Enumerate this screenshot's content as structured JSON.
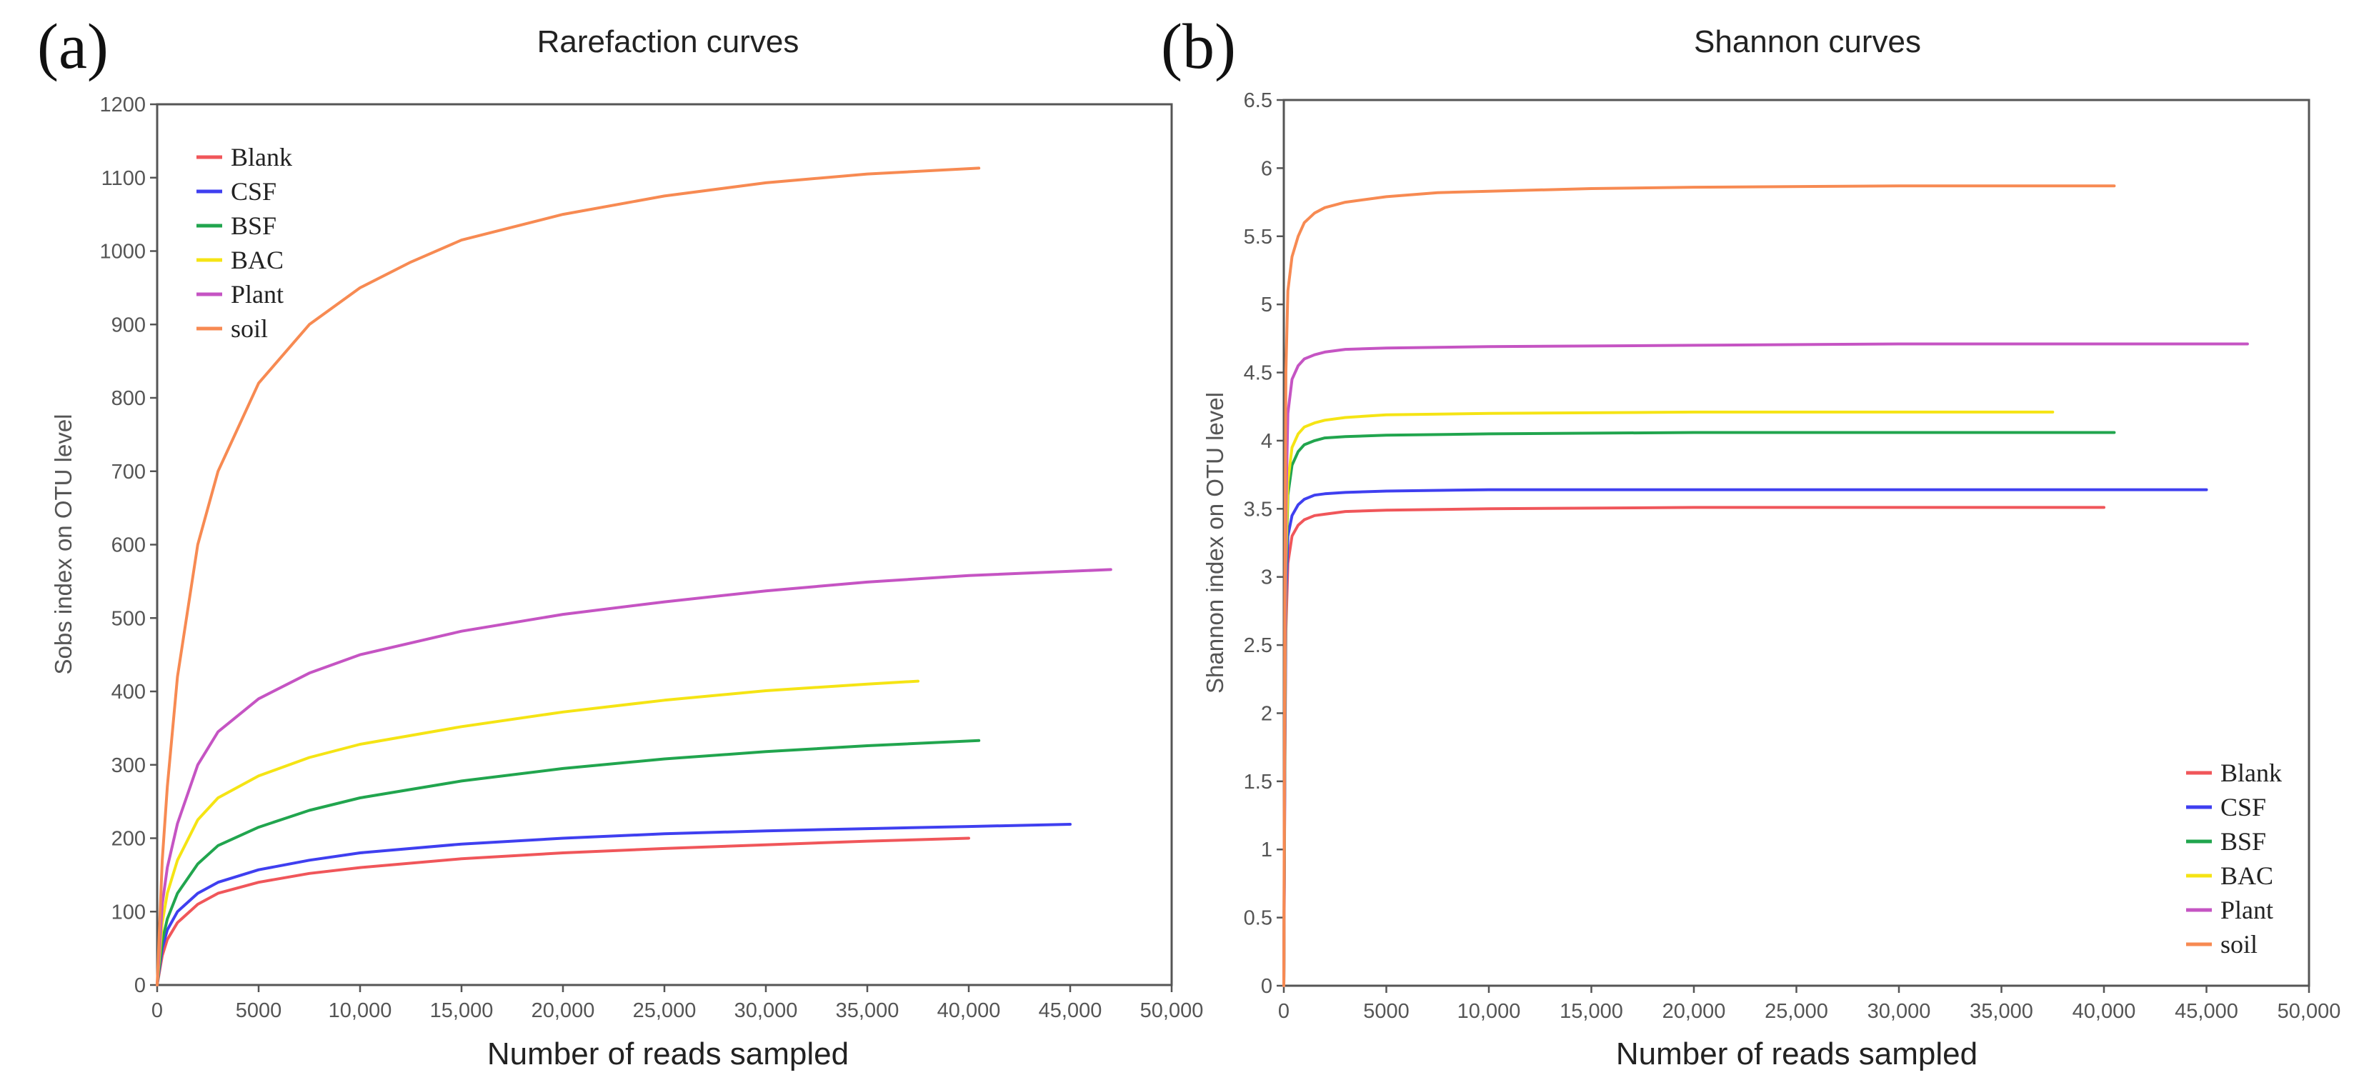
{
  "figure": {
    "panel_a_label": "(a)",
    "panel_b_label": "(b)"
  },
  "chart_data": [
    {
      "type": "line",
      "title": "Rarefaction curves",
      "xlabel": "Number of reads sampled",
      "ylabel": "Sobs index on OTU level",
      "xlim": [
        0,
        50000
      ],
      "ylim": [
        0,
        1200
      ],
      "x_ticks": [
        0,
        5000,
        10000,
        15000,
        20000,
        25000,
        30000,
        35000,
        40000,
        45000,
        50000
      ],
      "x_tick_labels": [
        "0",
        "5000",
        "10,000",
        "15,000",
        "20,000",
        "25,000",
        "30,000",
        "35,000",
        "40,000",
        "45,000",
        "50,000"
      ],
      "y_ticks": [
        0,
        100,
        200,
        300,
        400,
        500,
        600,
        700,
        800,
        900,
        1000,
        1100,
        1200
      ],
      "y_tick_labels": [
        "0",
        "100",
        "200",
        "300",
        "400",
        "500",
        "600",
        "700",
        "800",
        "900",
        "1000",
        "1100",
        "1200"
      ],
      "grid": false,
      "legend_position": "top-left",
      "series": [
        {
          "name": "Blank",
          "color": "#f0565a",
          "x": [
            0,
            250,
            500,
            1000,
            2000,
            3000,
            5000,
            7500,
            10000,
            15000,
            20000,
            25000,
            30000,
            35000,
            40000
          ],
          "y": [
            0,
            40,
            62,
            85,
            110,
            125,
            140,
            152,
            160,
            172,
            180,
            186,
            191,
            196,
            200
          ]
        },
        {
          "name": "CSF",
          "color": "#3f3ff0",
          "x": [
            0,
            250,
            500,
            1000,
            2000,
            3000,
            5000,
            7500,
            10000,
            15000,
            20000,
            25000,
            30000,
            35000,
            40000,
            45000
          ],
          "y": [
            0,
            50,
            75,
            100,
            125,
            140,
            157,
            170,
            180,
            192,
            200,
            206,
            210,
            213,
            216,
            219
          ]
        },
        {
          "name": "BSF",
          "color": "#21a54e",
          "x": [
            0,
            250,
            500,
            1000,
            2000,
            3000,
            5000,
            7500,
            10000,
            15000,
            20000,
            25000,
            30000,
            35000,
            40500
          ],
          "y": [
            0,
            60,
            90,
            125,
            165,
            190,
            215,
            238,
            255,
            278,
            295,
            308,
            318,
            326,
            333
          ]
        },
        {
          "name": "BAC",
          "color": "#f5e414",
          "x": [
            0,
            250,
            500,
            1000,
            2000,
            3000,
            5000,
            7500,
            10000,
            15000,
            20000,
            25000,
            30000,
            35000,
            37500
          ],
          "y": [
            0,
            85,
            125,
            170,
            225,
            255,
            285,
            310,
            328,
            352,
            372,
            388,
            401,
            410,
            414
          ]
        },
        {
          "name": "Plant",
          "color": "#c554c3",
          "x": [
            0,
            250,
            500,
            1000,
            2000,
            3000,
            5000,
            7500,
            10000,
            15000,
            20000,
            25000,
            30000,
            35000,
            40000,
            47000
          ],
          "y": [
            0,
            110,
            160,
            220,
            300,
            345,
            390,
            425,
            450,
            482,
            505,
            522,
            537,
            549,
            558,
            566
          ]
        },
        {
          "name": "soil",
          "color": "#f78a52",
          "x": [
            0,
            250,
            500,
            1000,
            2000,
            3000,
            5000,
            7500,
            10000,
            12500,
            15000,
            20000,
            25000,
            30000,
            35000,
            40500
          ],
          "y": [
            0,
            170,
            270,
            420,
            600,
            700,
            820,
            900,
            950,
            985,
            1015,
            1050,
            1075,
            1093,
            1105,
            1113
          ]
        }
      ]
    },
    {
      "type": "line",
      "title": "Shannon curves",
      "xlabel": "Number of reads sampled",
      "ylabel": "Shannon index on OTU level",
      "xlim": [
        0,
        50000
      ],
      "ylim": [
        0,
        6.5
      ],
      "x_ticks": [
        0,
        5000,
        10000,
        15000,
        20000,
        25000,
        30000,
        35000,
        40000,
        45000,
        50000
      ],
      "x_tick_labels": [
        "0",
        "5000",
        "10,000",
        "15,000",
        "20,000",
        "25,000",
        "30,000",
        "35,000",
        "40,000",
        "45,000",
        "50,000"
      ],
      "y_ticks": [
        0,
        0.5,
        1,
        1.5,
        2,
        2.5,
        3,
        3.5,
        4,
        4.5,
        5,
        5.5,
        6,
        6.5
      ],
      "y_tick_labels": [
        "0",
        "0.5",
        "1",
        "1.5",
        "2",
        "2.5",
        "3",
        "3.5",
        "4",
        "4.5",
        "5",
        "5.5",
        "6",
        "6.5"
      ],
      "grid": false,
      "legend_position": "bottom-right",
      "series": [
        {
          "name": "Blank",
          "color": "#f0565a",
          "x": [
            0,
            50,
            100,
            200,
            400,
            700,
            1000,
            1500,
            2000,
            3000,
            5000,
            10000,
            20000,
            30000,
            40000
          ],
          "y": [
            0,
            1.5,
            2.6,
            3.1,
            3.3,
            3.38,
            3.42,
            3.45,
            3.46,
            3.48,
            3.49,
            3.5,
            3.51,
            3.51,
            3.51
          ]
        },
        {
          "name": "CSF",
          "color": "#3f3ff0",
          "x": [
            0,
            50,
            100,
            200,
            400,
            700,
            1000,
            1500,
            2000,
            3000,
            5000,
            10000,
            20000,
            30000,
            45000
          ],
          "y": [
            0,
            1.6,
            2.8,
            3.3,
            3.45,
            3.53,
            3.57,
            3.6,
            3.61,
            3.62,
            3.63,
            3.64,
            3.64,
            3.64,
            3.64
          ]
        },
        {
          "name": "BSF",
          "color": "#21a54e",
          "x": [
            0,
            50,
            100,
            200,
            400,
            700,
            1000,
            1500,
            2000,
            3000,
            5000,
            10000,
            20000,
            30000,
            40500
          ],
          "y": [
            0,
            1.8,
            3.0,
            3.6,
            3.82,
            3.92,
            3.97,
            4.0,
            4.02,
            4.03,
            4.04,
            4.05,
            4.06,
            4.06,
            4.06
          ]
        },
        {
          "name": "BAC",
          "color": "#f5e414",
          "x": [
            0,
            50,
            100,
            200,
            400,
            700,
            1000,
            1500,
            2000,
            3000,
            5000,
            10000,
            20000,
            30000,
            37500
          ],
          "y": [
            0,
            1.9,
            3.1,
            3.7,
            3.95,
            4.05,
            4.1,
            4.13,
            4.15,
            4.17,
            4.19,
            4.2,
            4.21,
            4.21,
            4.21
          ]
        },
        {
          "name": "Plant",
          "color": "#c554c3",
          "x": [
            0,
            50,
            100,
            200,
            400,
            700,
            1000,
            1500,
            2000,
            3000,
            5000,
            10000,
            20000,
            30000,
            40000,
            47000
          ],
          "y": [
            0,
            2.2,
            3.5,
            4.2,
            4.45,
            4.55,
            4.6,
            4.63,
            4.65,
            4.67,
            4.68,
            4.69,
            4.7,
            4.71,
            4.71,
            4.71
          ]
        },
        {
          "name": "soil",
          "color": "#f78a52",
          "x": [
            0,
            50,
            100,
            200,
            400,
            700,
            1000,
            1500,
            2000,
            3000,
            5000,
            7500,
            10000,
            15000,
            20000,
            30000,
            40500
          ],
          "y": [
            0,
            2.8,
            4.5,
            5.1,
            5.35,
            5.5,
            5.6,
            5.67,
            5.71,
            5.75,
            5.79,
            5.82,
            5.83,
            5.85,
            5.86,
            5.87,
            5.87
          ]
        }
      ]
    }
  ]
}
